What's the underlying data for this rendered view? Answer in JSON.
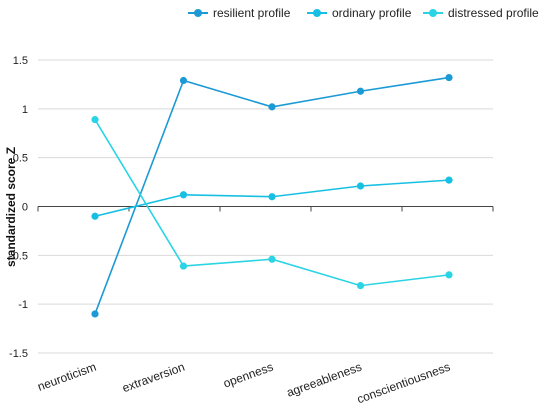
{
  "chart_data": {
    "type": "line",
    "categories": [
      "neuroticism",
      "extraversion",
      "openness",
      "agreeableness",
      "conscientiousness"
    ],
    "ylabel": "standardized score Z",
    "xlabel": "",
    "ylim": [
      -1.5,
      1.5
    ],
    "yticks": [
      1.5,
      1,
      0.5,
      0,
      -0.5,
      -1,
      -1.5
    ],
    "ytick_labels": [
      "1.5",
      "1",
      "0.5",
      "0",
      "-0.5",
      "-1",
      "-1.5"
    ],
    "grid": true,
    "legend_position": "top-right",
    "series": [
      {
        "name": "resilient profile",
        "color": "#1c9ad6",
        "values": [
          -1.1,
          1.29,
          1.02,
          1.18,
          1.32
        ]
      },
      {
        "name": "ordinary profile",
        "color": "#17c0e3",
        "values": [
          -0.1,
          0.12,
          0.1,
          0.21,
          0.27
        ]
      },
      {
        "name": "distressed profile",
        "color": "#2ad4e4",
        "values": [
          0.89,
          -0.61,
          -0.54,
          -0.81,
          -0.7
        ]
      }
    ]
  }
}
